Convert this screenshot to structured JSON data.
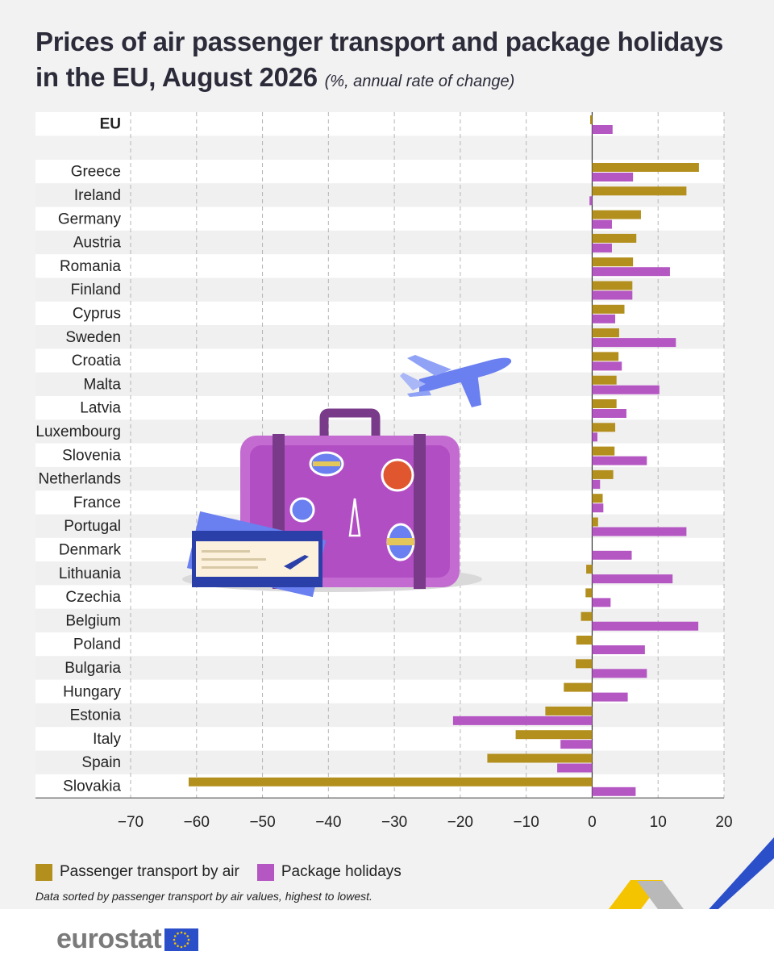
{
  "title": {
    "line1": "Prices of air passenger transport and package holidays",
    "line2": "in the EU, August 2026",
    "subtitle": "(%, annual rate of change)"
  },
  "legend": {
    "air_label": "Passenger transport by air",
    "holiday_label": "Package holidays"
  },
  "note": "Data sorted by passenger transport by air values, highest to lowest.",
  "brand": {
    "name": "eurostat"
  },
  "colors": {
    "air": "#b38f1e",
    "holidays": "#b557c3",
    "accent_yellow": "#f5c400",
    "accent_blue": "#2b4fc9"
  },
  "chart_data": {
    "type": "bar",
    "orientation": "horizontal",
    "categories": [
      "EU",
      "Greece",
      "Ireland",
      "Germany",
      "Austria",
      "Romania",
      "Finland",
      "Cyprus",
      "Sweden",
      "Croatia",
      "Malta",
      "Latvia",
      "Luxembourg",
      "Slovenia",
      "Netherlands",
      "France",
      "Portugal",
      "Denmark",
      "Lithuania",
      "Czechia",
      "Belgium",
      "Poland",
      "Bulgaria",
      "Hungary",
      "Estonia",
      "Italy",
      "Spain",
      "Slovakia"
    ],
    "series": [
      {
        "name": "Passenger transport by air",
        "values": [
          -0.3,
          16.2,
          14.3,
          7.4,
          6.7,
          6.2,
          6.1,
          4.9,
          4.1,
          4.0,
          3.7,
          3.7,
          3.5,
          3.4,
          3.2,
          1.6,
          0.9,
          0.0,
          -0.9,
          -1.0,
          -1.7,
          -2.4,
          -2.5,
          -4.3,
          -7.1,
          -11.6,
          -15.9,
          -61.2
        ]
      },
      {
        "name": "Package holidays",
        "values": [
          3.1,
          6.2,
          -0.4,
          3.0,
          3.0,
          11.8,
          6.1,
          3.5,
          12.7,
          4.5,
          10.2,
          5.2,
          0.8,
          8.3,
          1.2,
          1.7,
          14.3,
          6.0,
          12.2,
          2.8,
          16.1,
          8.0,
          8.3,
          5.4,
          -21.1,
          -4.8,
          -5.3,
          6.6
        ]
      }
    ],
    "xlim": [
      -70,
      20
    ],
    "xticks": [
      -70,
      -60,
      -50,
      -40,
      -30,
      -20,
      -10,
      0,
      10,
      20
    ],
    "grid": true,
    "legend_position": "bottom-left"
  }
}
